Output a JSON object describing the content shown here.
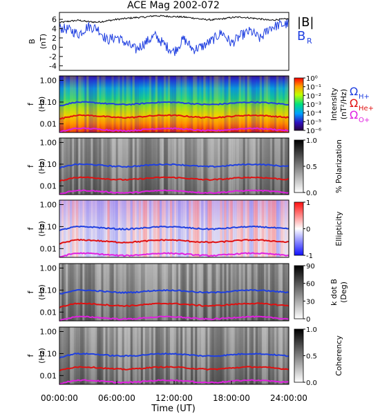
{
  "chart_data": {
    "title": "ACE Mag 2002-072",
    "type": "line",
    "x_ticks": [
      "00:00:00",
      "06:00:00",
      "12:00:00",
      "18:00:00",
      "24:00:00"
    ],
    "x_label": "Time (UT)",
    "x_range_hours": [
      0,
      24
    ],
    "freq_ticks": [
      "1.00",
      "0.10",
      "0.01"
    ],
    "freq_range_hz": [
      0.004,
      1.6
    ],
    "freq_scale": "log",
    "cyclotron_lines": [
      {
        "label": "Ω",
        "subscript": "H+",
        "color": "#1f3fe0",
        "freq_hz": 0.088
      },
      {
        "label": "Ω",
        "subscript": "He+",
        "color": "#e01010",
        "freq_hz": 0.022
      },
      {
        "label": "Ω",
        "subscript": "O+",
        "color": "#e020e0",
        "freq_hz": 0.0055
      }
    ],
    "panels": [
      {
        "id": "b-field",
        "type": "line",
        "ylabel_main": "B",
        "ylabel_unit": "(nT)",
        "y_ticks": [
          "6",
          "4",
          "2",
          "0",
          "-2",
          "-4"
        ],
        "ylim": [
          -5,
          7.5
        ],
        "legend": [
          {
            "label": "|B|",
            "color": "#000000"
          },
          {
            "label": "B",
            "subscript": "R",
            "color": "#1f3fe0"
          }
        ],
        "series": [
          {
            "name": "|B|",
            "color": "#000000",
            "values": [
              5.3,
              5.6,
              5.8,
              5.5,
              5.4,
              5.7,
              6.0,
              6.2,
              6.4,
              6.5,
              6.8,
              6.7,
              6.6,
              6.5,
              6.3,
              6.0,
              5.9,
              6.1,
              6.4,
              6.5,
              6.3,
              6.1,
              5.8,
              6.0,
              6.1
            ]
          },
          {
            "name": "B_R",
            "color": "#1f3fe0",
            "values": [
              4.2,
              3.8,
              2.8,
              4.5,
              4.0,
              1.5,
              2.2,
              0.8,
              -0.5,
              1.0,
              2.5,
              0.5,
              -1.0,
              1.8,
              -0.5,
              0.2,
              1.5,
              3.2,
              0.8,
              2.5,
              3.5,
              1.8,
              4.2,
              4.8,
              5.0
            ]
          }
        ]
      },
      {
        "id": "intensity",
        "type": "heatmap",
        "colormap": "rainbow",
        "colorbar_ticks": [
          "10⁰",
          "10⁻¹",
          "10⁻²",
          "10⁻³",
          "10⁻⁴",
          "10⁻⁵",
          "10⁻⁶"
        ],
        "colorbar_label_line1": "Intensity",
        "colorbar_label_line2": "(nT²/Hz)"
      },
      {
        "id": "polarization",
        "type": "heatmap",
        "colormap": "gray",
        "colorbar_ticks": [
          "1.0",
          "0.5",
          "0.0"
        ],
        "colorbar_label_line1": "% Polarization",
        "colorbar_label_line2": ""
      },
      {
        "id": "ellipticity",
        "type": "heatmap",
        "colormap": "red-white-blue",
        "colorbar_ticks": [
          "1",
          "0",
          "-1"
        ],
        "colorbar_label_line1": "Ellipticity",
        "colorbar_label_line2": ""
      },
      {
        "id": "kdotb",
        "type": "heatmap",
        "colormap": "gray",
        "colorbar_ticks": [
          "90",
          "60",
          "30",
          "0"
        ],
        "colorbar_label_line1": "k dot B",
        "colorbar_label_line2": "(Deg)"
      },
      {
        "id": "coherency",
        "type": "heatmap",
        "colormap": "gray",
        "colorbar_ticks": [
          "1.0",
          "0.5",
          "0.0"
        ],
        "colorbar_label_line1": "Coherency",
        "colorbar_label_line2": ""
      }
    ],
    "spectrogram_ylabel_main": "f",
    "spectrogram_ylabel_unit": "(Hz)"
  }
}
